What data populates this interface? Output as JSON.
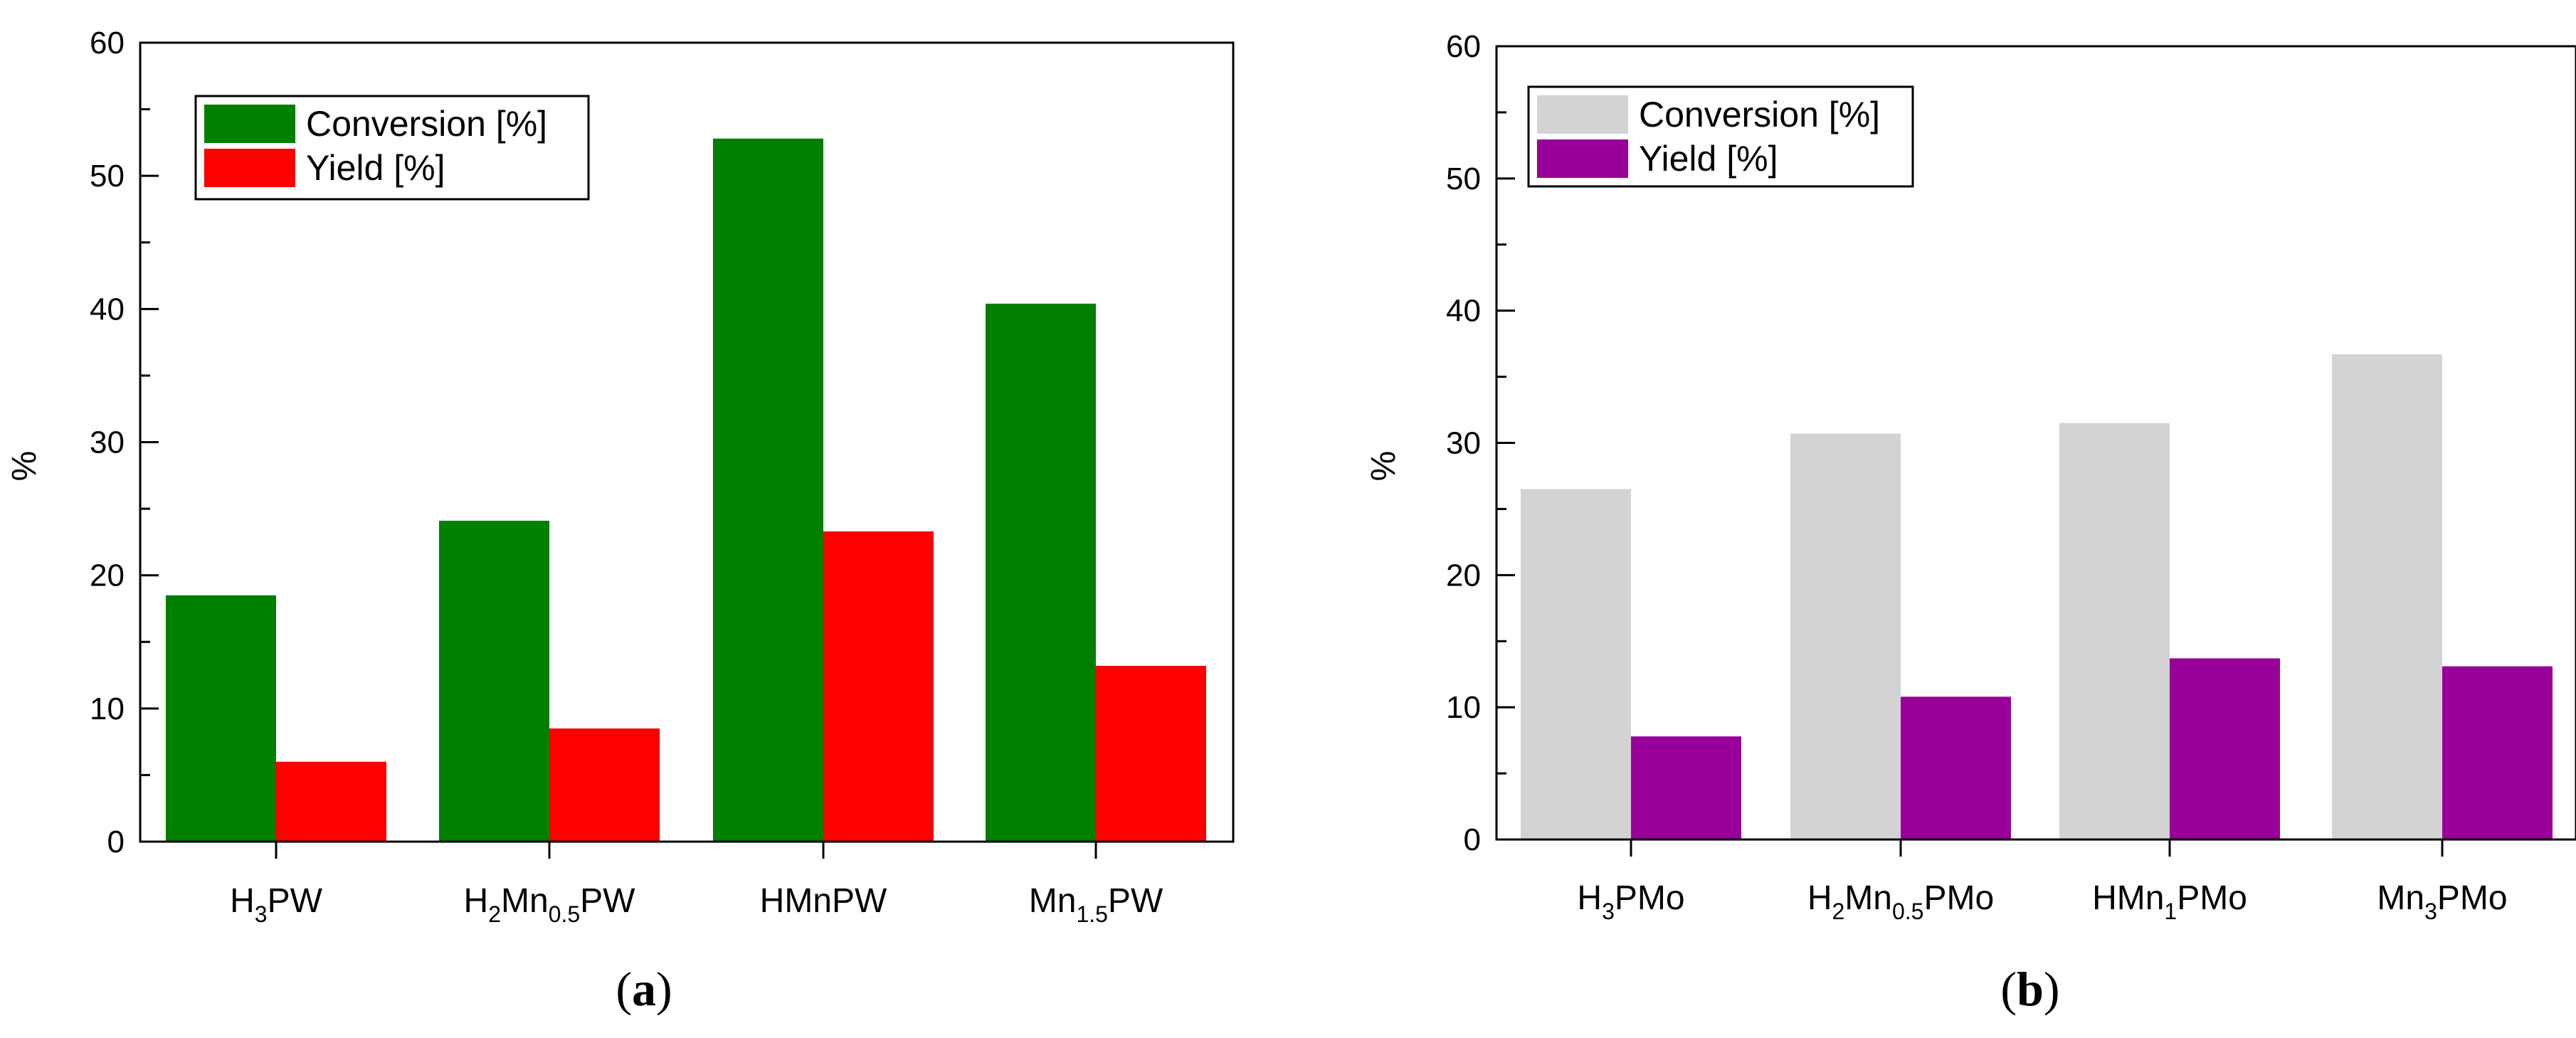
{
  "chart_data": [
    {
      "type": "bar",
      "panel_label": "(a)",
      "panel_label_parts": {
        "open": "(",
        "letter": "a",
        "close": ")"
      },
      "ylabel": "%",
      "xlabel": "",
      "ylim": [
        0,
        60
      ],
      "yticks": [
        0,
        10,
        20,
        30,
        40,
        50,
        60
      ],
      "categories": [
        "H3PW",
        "H2Mn0.5PW",
        "HMnPW",
        "Mn1.5PW"
      ],
      "category_labels": [
        [
          {
            "t": "H",
            "s": ""
          },
          {
            "t": "3",
            "s": "sub"
          },
          {
            "t": "PW",
            "s": ""
          }
        ],
        [
          {
            "t": "H",
            "s": ""
          },
          {
            "t": "2",
            "s": "sub"
          },
          {
            "t": "Mn",
            "s": ""
          },
          {
            "t": "0.5",
            "s": "sub"
          },
          {
            "t": "PW",
            "s": ""
          }
        ],
        [
          {
            "t": "HMnPW",
            "s": ""
          }
        ],
        [
          {
            "t": "Mn",
            "s": ""
          },
          {
            "t": "1.5",
            "s": "sub"
          },
          {
            "t": "PW",
            "s": ""
          }
        ]
      ],
      "series": [
        {
          "name": "Conversion [%]",
          "color": "#007f00",
          "values": [
            18.5,
            24.1,
            52.8,
            40.4
          ]
        },
        {
          "name": "Yield [%]",
          "color": "#ff0000",
          "values": [
            6.0,
            8.5,
            23.3,
            13.2
          ]
        }
      ],
      "legend_position": "top-left"
    },
    {
      "type": "bar",
      "panel_label": "(b)",
      "panel_label_parts": {
        "open": "(",
        "letter": "b",
        "close": ")"
      },
      "ylabel": "%",
      "xlabel": "",
      "ylim": [
        0,
        60
      ],
      "yticks": [
        0,
        10,
        20,
        30,
        40,
        50,
        60
      ],
      "categories": [
        "H3PMo",
        "H2Mn0.5PMo",
        "HMn1PMo",
        "Mn3PMo"
      ],
      "category_labels": [
        [
          {
            "t": "H",
            "s": ""
          },
          {
            "t": "3",
            "s": "sub"
          },
          {
            "t": "PMo",
            "s": ""
          }
        ],
        [
          {
            "t": "H",
            "s": ""
          },
          {
            "t": "2",
            "s": "sub"
          },
          {
            "t": "Mn",
            "s": ""
          },
          {
            "t": "0.5",
            "s": "sub"
          },
          {
            "t": "PMo",
            "s": ""
          }
        ],
        [
          {
            "t": "HMn",
            "s": ""
          },
          {
            "t": "1",
            "s": "sub"
          },
          {
            "t": "PMo",
            "s": ""
          }
        ],
        [
          {
            "t": "Mn",
            "s": ""
          },
          {
            "t": "3",
            "s": "sub"
          },
          {
            "t": "PMo",
            "s": ""
          }
        ]
      ],
      "series": [
        {
          "name": "Conversion [%]",
          "color": "#d3d3d3",
          "values": [
            26.5,
            30.7,
            31.5,
            36.7
          ]
        },
        {
          "name": "Yield [%]",
          "color": "#990099",
          "values": [
            7.8,
            10.8,
            13.7,
            13.1
          ]
        }
      ],
      "legend_position": "top-left"
    }
  ]
}
